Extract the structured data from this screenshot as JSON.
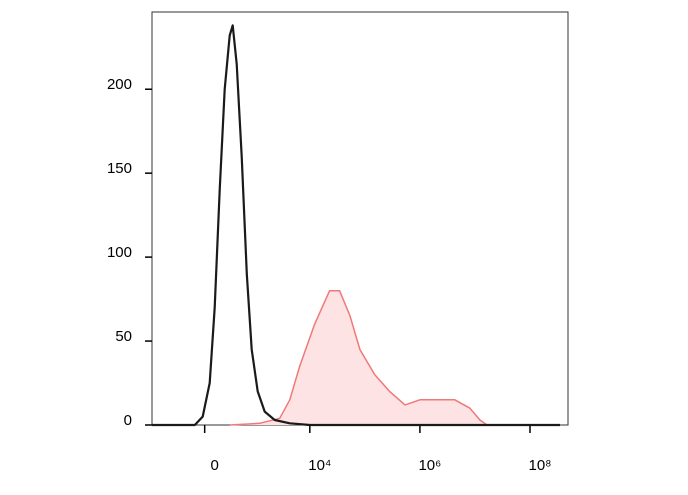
{
  "chart_data": {
    "type": "histogram-overlay",
    "xscale": "asinh",
    "xlim": [
      -1100,
      490000000
    ],
    "xticks": [
      0,
      {
        "value": 10000,
        "label": "10⁴"
      },
      {
        "value": 1000000,
        "label": "10⁶"
      },
      {
        "value": 100000000,
        "label": "10⁸"
      }
    ],
    "ylim": [
      0,
      246
    ],
    "yticks": [
      0,
      50,
      100,
      150,
      200
    ],
    "series": [
      {
        "color": "#f07878",
        "fill": "#fde3e3",
        "x": [
          308,
          1218,
          2830,
          4330,
          6540,
          12230,
          22900,
          34800,
          53600,
          81300,
          151000,
          281000,
          536000,
          1000000,
          2290000,
          4300000,
          8100000,
          12300000,
          16600000
        ],
        "values": [
          0,
          1,
          4,
          15,
          35,
          60,
          80,
          80,
          65,
          45,
          30,
          20,
          12,
          15,
          15,
          15,
          10,
          3,
          0
        ]
      },
      {
        "color": "#1a1a1a",
        "x": [
          -1100,
          -105,
          -20,
          52,
          106,
          165,
          231,
          308,
          359,
          438,
          553,
          694,
          863,
          1119,
          1503,
          2298,
          4330,
          10000,
          350000000
        ],
        "values": [
          0,
          0,
          5,
          25,
          70,
          140,
          200,
          232,
          238,
          215,
          160,
          90,
          45,
          20,
          8,
          3,
          1,
          0,
          0
        ]
      }
    ]
  }
}
